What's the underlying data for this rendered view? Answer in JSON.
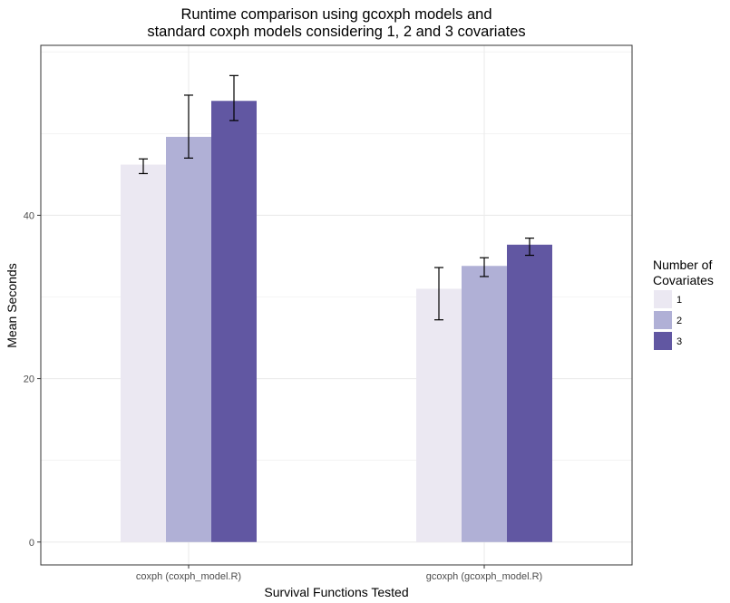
{
  "chart_data": {
    "type": "bar",
    "title_lines": [
      "Runtime comparison using gcoxph models and",
      "standard coxph models considering 1, 2 and 3 covariates"
    ],
    "xlabel": "Survival Functions Tested",
    "ylabel": "Mean Seconds",
    "categories": [
      "coxph (coxph_model.R)",
      "gcoxph (gcoxph_model.R)"
    ],
    "ylim": [
      -2.8,
      60.8
    ],
    "yticks": [
      0,
      20,
      40
    ],
    "grid": true,
    "legend": {
      "title_lines": [
        "Number of",
        "Covariates"
      ],
      "placement": "right"
    },
    "series": [
      {
        "name": "1",
        "color": "#ebe8f2",
        "values": [
          46.2,
          31.0
        ],
        "error_low": [
          45.1,
          27.2
        ],
        "error_high": [
          46.9,
          33.6
        ]
      },
      {
        "name": "2",
        "color": "#b0b0d6",
        "values": [
          49.6,
          33.8
        ],
        "error_low": [
          47.0,
          32.5
        ],
        "error_high": [
          54.7,
          34.8
        ]
      },
      {
        "name": "3",
        "color": "#6157a2",
        "values": [
          54.0,
          36.4
        ],
        "error_low": [
          51.6,
          35.1
        ],
        "error_high": [
          57.1,
          37.2
        ]
      }
    ]
  }
}
